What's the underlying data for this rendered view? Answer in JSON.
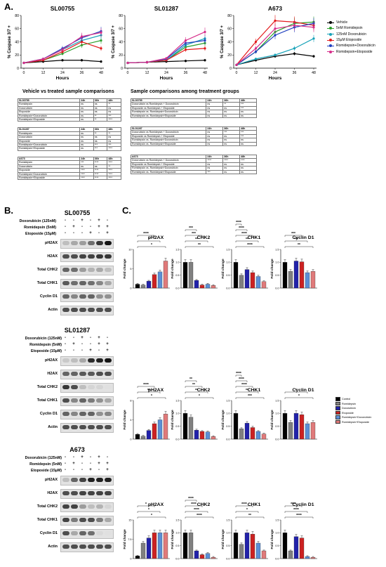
{
  "panel_a": {
    "letter": "A.",
    "charts": [
      {
        "title": "SL00755",
        "xlabel": "Hours",
        "ylabel": "% Caspase 3/7 +",
        "xticks": [
          "0",
          "12",
          "24",
          "36",
          "48"
        ],
        "yticks": [
          "0",
          "20",
          "40",
          "60",
          "80"
        ]
      },
      {
        "title": "SL01287",
        "xlabel": "Hours",
        "ylabel": "% Caspase 3/7 +",
        "xticks": [
          "0",
          "12",
          "24",
          "36",
          "48"
        ],
        "yticks": [
          "0",
          "20",
          "40",
          "60",
          "80"
        ]
      },
      {
        "title": "A673",
        "xlabel": "Hours",
        "ylabel": "% Caspase 3/7 +",
        "xticks": [
          "0",
          "12",
          "24",
          "36",
          "48"
        ],
        "yticks": [
          "0",
          "20",
          "40",
          "60",
          "80"
        ]
      }
    ],
    "legend": [
      {
        "label": "Vehicle",
        "color": "#000000"
      },
      {
        "label": "5nM Romidepsin",
        "color": "#2ca02c"
      },
      {
        "label": "125nM Doxorubicin",
        "color": "#17a2b8"
      },
      {
        "label": "15µM Etoposide",
        "color": "#e31a1c"
      },
      {
        "label": "Romidepsin+Doxorubicin",
        "color": "#1f3fbf"
      },
      {
        "label": "Romidepsin+Etoposide",
        "color": "#d62d8a"
      }
    ],
    "vehicle_title": "Vehicle vs treated sample comparisons",
    "sample_title": "Sample comparisons among treatment groups",
    "vehicle_tables": [
      {
        "name": "SL00755",
        "h": [
          "24h",
          "36h",
          "48h"
        ],
        "rows": [
          [
            "Romidepsin",
            "ns",
            "ns",
            "**"
          ],
          [
            "Doxorubicin",
            "ns",
            "ns",
            "ns"
          ],
          [
            "Etoposide",
            "ns",
            "ns",
            "ns"
          ],
          [
            "Romidepsin+Doxorubicin",
            "ns",
            "**",
            "***"
          ],
          [
            "Romidepsin+Etoposide",
            "ns",
            "**",
            "****"
          ]
        ]
      },
      {
        "name": "SL01287",
        "h": [
          "24h",
          "36h",
          "48h"
        ],
        "rows": [
          [
            "Romidepsin",
            "ns",
            "**",
            "**"
          ],
          [
            "Doxorubicin",
            "ns",
            "ns",
            "ns"
          ],
          [
            "Etoposide",
            "ns",
            "ns",
            "ns"
          ],
          [
            "Romidepsin+Doxorubicin",
            "ns",
            "***",
            "***"
          ],
          [
            "Romidepsin+Etoposide",
            "ns",
            "***",
            "****"
          ]
        ]
      },
      {
        "name": "A673",
        "h": [
          "24h",
          "36h",
          "48h"
        ],
        "rows": [
          [
            "Romidepsin",
            "***",
            "****",
            "****"
          ],
          [
            "Doxorubicin",
            "ns",
            "ns",
            "**"
          ],
          [
            "Etoposide",
            "****",
            "****",
            "****"
          ],
          [
            "Romidepsin+Doxorubicin",
            "****",
            "****",
            "****"
          ],
          [
            "Romidepsin+Etoposide",
            "****",
            "****",
            "****"
          ]
        ]
      }
    ],
    "sample_tables": [
      {
        "name": "SL00755",
        "h": [
          "24h",
          "36h",
          "48h"
        ],
        "rows": [
          [
            "Doxorubicin vs Romidepsin + Doxorubicin",
            "ns",
            "**",
            "***"
          ],
          [
            "Etoposide vs Romidepsin + Etoposide",
            "ns",
            "ns",
            "***"
          ],
          [
            "Romidepsin vs. Romidepsin+Doxorubicin",
            "ns",
            "ns",
            "ns"
          ],
          [
            "Romidepsin vs. Romidepsin+Etoposide",
            "ns",
            "ns",
            "ns"
          ]
        ]
      },
      {
        "name": "SL01287",
        "h": [
          "24h",
          "36h",
          "48h"
        ],
        "rows": [
          [
            "Doxorubicin vs Romidepsin + Doxorubicin",
            "ns",
            "***",
            "***"
          ],
          [
            "Etoposide vs Romidepsin + Etoposide",
            "ns",
            "ns",
            "***"
          ],
          [
            "Romidepsin vs. Romidepsin+Doxorubicin",
            "ns",
            "ns",
            "ns"
          ],
          [
            "Romidepsin vs. Romidepsin+Etoposide",
            "ns",
            "ns",
            "ns"
          ]
        ]
      },
      {
        "name": "A673",
        "h": [
          "24h",
          "36h",
          "48h"
        ],
        "rows": [
          [
            "Doxorubicin vs Romidepsin + Doxorubicin",
            "****",
            "****",
            "****"
          ],
          [
            "Etoposide vs Romidepsin + Etoposide",
            "ns",
            "ns",
            "ns"
          ],
          [
            "Romidepsin vs. Romidepsin+Doxorubicin",
            "ns",
            "ns",
            "ns"
          ],
          [
            "Romidepsin vs. Romidepsin+Etoposide",
            "***",
            "ns",
            "ns"
          ]
        ]
      }
    ]
  },
  "panel_b": {
    "letter": "B.",
    "treat_labels": [
      "Doxorubicin (125nM)",
      "Romidepsin (5nM)",
      "Etoposide (15µM)"
    ],
    "signs": [
      [
        "-",
        "-",
        "+",
        "-",
        "+",
        "-"
      ],
      [
        "-",
        "+",
        "-",
        "-",
        "+",
        "+"
      ],
      [
        "-",
        "-",
        "-",
        "+",
        "-",
        "+"
      ]
    ],
    "blots": [
      {
        "name": "SL00755",
        "labels": [
          "pH2AX",
          "H2AX",
          "Total CHK2",
          "Total CHK1",
          "Cyclin D1",
          "Actin"
        ]
      },
      {
        "name": "SL01287",
        "labels": [
          "pH2AX",
          "H2AX",
          "Total CHK2",
          "Total CHK1",
          "Cyclin D1",
          "Actin"
        ]
      },
      {
        "name": "A673",
        "labels": [
          "pH2AX",
          "H2AX",
          "Total CHK2",
          "Total CHK1",
          "Cyclin D1",
          "Actin"
        ]
      }
    ]
  },
  "panel_c": {
    "letter": "C.",
    "ylabel": "Fold change",
    "legend": [
      {
        "label": "Control",
        "color": "#000000"
      },
      {
        "label": "Romidepsin",
        "color": "#808080"
      },
      {
        "label": "Doxorubicin",
        "color": "#2222aa"
      },
      {
        "label": "Etoposide",
        "color": "#cc2222"
      },
      {
        "label": "Romidepsin+Doxorubicin",
        "color": "#5b8fd6"
      },
      {
        "label": "Romidepsin+Etoposide",
        "color": "#e07a7a"
      }
    ],
    "row_titles": [
      [
        "pH2AX",
        "CHK2",
        "CHK1",
        "Cyclin D1"
      ],
      [
        "pH2AX",
        "CHK2",
        "CHK1",
        "Cyclin D1"
      ],
      [
        "pH2AX",
        "CHK2",
        "CHK1",
        "Cyclin D1"
      ]
    ]
  },
  "chart_data": [
    {
      "type": "line",
      "title": "SL00755",
      "x": [
        0,
        12,
        24,
        36,
        48
      ],
      "xlabel": "Hours",
      "ylabel": "% Caspase 3/7 +",
      "ylim": [
        0,
        80
      ],
      "series": [
        {
          "name": "Vehicle",
          "values": [
            8,
            10,
            12,
            12,
            10
          ]
        },
        {
          "name": "5nM Romidepsin",
          "values": [
            8,
            12,
            22,
            35,
            42
          ]
        },
        {
          "name": "125nM Doxorubicin",
          "values": [
            8,
            14,
            28,
            42,
            50
          ]
        },
        {
          "name": "15µM Etoposide",
          "values": [
            8,
            12,
            25,
            40,
            30
          ]
        },
        {
          "name": "Romidepsin+Doxorubicin",
          "values": [
            8,
            14,
            30,
            46,
            56
          ]
        },
        {
          "name": "Romidepsin+Etoposide",
          "values": [
            8,
            14,
            28,
            48,
            54
          ]
        }
      ]
    },
    {
      "type": "line",
      "title": "SL01287",
      "x": [
        0,
        12,
        24,
        36,
        48
      ],
      "xlabel": "Hours",
      "ylabel": "% Caspase 3/7 +",
      "ylim": [
        0,
        80
      ],
      "series": [
        {
          "name": "Vehicle",
          "values": [
            8,
            9,
            10,
            11,
            12
          ]
        },
        {
          "name": "5nM Romidepsin",
          "values": [
            8,
            9,
            12,
            32,
            38
          ]
        },
        {
          "name": "125nM Doxorubicin",
          "values": [
            8,
            9,
            12,
            35,
            45
          ]
        },
        {
          "name": "15µM Etoposide",
          "values": [
            8,
            9,
            12,
            28,
            30
          ]
        },
        {
          "name": "Romidepsin+Doxorubicin",
          "values": [
            8,
            9,
            14,
            38,
            42
          ]
        },
        {
          "name": "Romidepsin+Etoposide",
          "values": [
            8,
            9,
            15,
            42,
            55
          ]
        }
      ]
    },
    {
      "type": "line",
      "title": "A673",
      "x": [
        0,
        12,
        24,
        36,
        48
      ],
      "xlabel": "Hours",
      "ylabel": "% Caspase 3/7 +",
      "ylim": [
        0,
        80
      ],
      "series": [
        {
          "name": "Vehicle",
          "values": [
            5,
            12,
            18,
            22,
            18
          ]
        },
        {
          "name": "5nM Romidepsin",
          "values": [
            5,
            25,
            55,
            68,
            70
          ]
        },
        {
          "name": "125nM Doxorubicin",
          "values": [
            5,
            14,
            20,
            30,
            45
          ]
        },
        {
          "name": "15µM Etoposide",
          "values": [
            5,
            40,
            72,
            70,
            65
          ]
        },
        {
          "name": "Romidepsin+Doxorubicin",
          "values": [
            5,
            25,
            50,
            62,
            68
          ]
        },
        {
          "name": "Romidepsin+Etoposide",
          "values": [
            5,
            30,
            60,
            65,
            62
          ]
        }
      ]
    },
    {
      "type": "bar",
      "title": "pH2AX",
      "group": "SL00755",
      "ylabel": "Fold change",
      "ylim": [
        0,
        10
      ],
      "categories": [
        "Control",
        "Romidepsin",
        "Doxorubicin",
        "Etoposide",
        "Romidepsin+Doxorubicin",
        "Romidepsin+Etoposide"
      ],
      "values": [
        1,
        0.8,
        1.8,
        3.5,
        4.2,
        7.0
      ],
      "annotations": [
        "*",
        "*",
        "****"
      ]
    },
    {
      "type": "bar",
      "title": "CHK2",
      "group": "SL00755",
      "ylabel": "Fold change",
      "ylim": [
        0,
        1.5
      ],
      "categories": [
        "Control",
        "Romidepsin",
        "Doxorubicin",
        "Etoposide",
        "Romidepsin+Doxorubicin",
        "Romidepsin+Etoposide"
      ],
      "values": [
        1,
        1,
        0.3,
        0.12,
        0.15,
        0.1
      ],
      "annotations": [
        "**",
        "**",
        "***",
        "***"
      ]
    },
    {
      "type": "bar",
      "title": "CHK1",
      "group": "SL00755",
      "ylabel": "Fold change",
      "ylim": [
        0,
        1.5
      ],
      "categories": [
        "Control",
        "Romidepsin",
        "Doxorubicin",
        "Etoposide",
        "Romidepsin+Doxorubicin",
        "Romidepsin+Etoposide"
      ],
      "values": [
        1,
        0.5,
        0.72,
        0.6,
        0.45,
        0.25
      ],
      "annotations": [
        "****",
        "**",
        "****",
        "****",
        "****"
      ]
    },
    {
      "type": "bar",
      "title": "Cyclin D1",
      "group": "SL00755",
      "ylabel": "Fold change",
      "ylim": [
        0,
        1.5
      ],
      "categories": [
        "Control",
        "Romidepsin",
        "Doxorubicin",
        "Etoposide",
        "Romidepsin+Doxorubicin",
        "Romidepsin+Etoposide"
      ],
      "values": [
        1,
        0.65,
        1.05,
        1.02,
        0.6,
        0.65
      ],
      "annotations": [
        "**",
        "***",
        "***"
      ]
    },
    {
      "type": "bar",
      "title": "pH2AX",
      "group": "SL01287",
      "ylabel": "Fold change",
      "ylim": [
        0,
        8
      ],
      "categories": [
        "Control",
        "Romidepsin",
        "Doxorubicin",
        "Etoposide",
        "Romidepsin+Doxorubicin",
        "Romidepsin+Etoposide"
      ],
      "values": [
        1,
        0.6,
        1.8,
        3.2,
        4.0,
        5.2
      ],
      "annotations": [
        "*",
        "**",
        "****"
      ]
    },
    {
      "type": "bar",
      "title": "CHK2",
      "group": "SL01287",
      "ylabel": "Fold change",
      "ylim": [
        0,
        1.5
      ],
      "categories": [
        "Control",
        "Romidepsin",
        "Doxorubicin",
        "Etoposide",
        "Romidepsin+Doxorubicin",
        "Romidepsin+Etoposide"
      ],
      "values": [
        1,
        0.85,
        0.35,
        0.3,
        0.28,
        0.1
      ],
      "annotations": [
        "*",
        "**",
        "**",
        "**"
      ]
    },
    {
      "type": "bar",
      "title": "CHK1",
      "group": "SL01287",
      "ylabel": "Fold change",
      "ylim": [
        0,
        1.5
      ],
      "categories": [
        "Control",
        "Romidepsin",
        "Doxorubicin",
        "Etoposide",
        "Romidepsin+Doxorubicin",
        "Romidepsin+Etoposide"
      ],
      "values": [
        1,
        0.4,
        0.62,
        0.45,
        0.3,
        0.2
      ],
      "annotations": [
        "***",
        "**",
        "****",
        "****",
        "****"
      ]
    },
    {
      "type": "bar",
      "title": "Cyclin D1",
      "group": "SL01287",
      "ylabel": "Fold change",
      "ylim": [
        0,
        1.5
      ],
      "categories": [
        "Control",
        "Romidepsin",
        "Doxorubicin",
        "Etoposide",
        "Romidepsin+Doxorubicin",
        "Romidepsin+Etoposide"
      ],
      "values": [
        1,
        0.65,
        1.0,
        0.95,
        0.6,
        0.65
      ],
      "annotations": [
        "*",
        "*"
      ]
    },
    {
      "type": "bar",
      "title": "pH2AX",
      "group": "A673",
      "ylabel": "Fold change",
      "ylim": [
        0,
        15
      ],
      "categories": [
        "Control",
        "Romidepsin",
        "Doxorubicin",
        "Etoposide",
        "Romidepsin+Doxorubicin",
        "Romidepsin+Etoposide"
      ],
      "values": [
        1,
        6,
        8,
        10,
        10,
        10
      ],
      "annotations": [
        "*",
        "*",
        "*"
      ]
    },
    {
      "type": "bar",
      "title": "CHK2",
      "group": "A673",
      "ylabel": "Fold change",
      "ylim": [
        0,
        1.5
      ],
      "categories": [
        "Control",
        "Romidepsin",
        "Doxorubicin",
        "Etoposide",
        "Romidepsin+Doxorubicin",
        "Romidepsin+Etoposide"
      ],
      "values": [
        1,
        1,
        0.3,
        0.15,
        0.2,
        0.05
      ],
      "annotations": [
        "****",
        "****",
        "****",
        "****"
      ]
    },
    {
      "type": "bar",
      "title": "CHK1",
      "group": "A673",
      "ylabel": "Fold change",
      "ylim": [
        0,
        1.5
      ],
      "categories": [
        "Control",
        "Romidepsin",
        "Doxorubicin",
        "Etoposide",
        "Romidepsin+Doxorubicin",
        "Romidepsin+Etoposide"
      ],
      "values": [
        1,
        0.55,
        1.0,
        0.95,
        0.6,
        0.3
      ],
      "annotations": [
        "**",
        "*",
        "****"
      ]
    },
    {
      "type": "bar",
      "title": "Cyclin D1",
      "group": "A673",
      "ylabel": "Fold change",
      "ylim": [
        0,
        1.5
      ],
      "categories": [
        "Control",
        "Romidepsin",
        "Doxorubicin",
        "Etoposide",
        "Romidepsin+Doxorubicin",
        "Romidepsin+Etoposide"
      ],
      "values": [
        1,
        0.3,
        0.85,
        0.8,
        0.08,
        0.05
      ],
      "annotations": [
        "****",
        "****",
        "****"
      ]
    }
  ]
}
